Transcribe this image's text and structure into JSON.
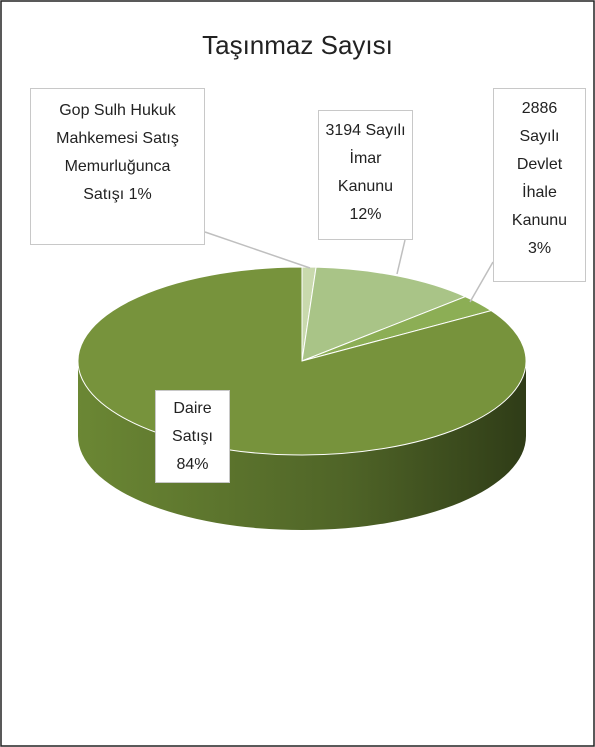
{
  "chart_data": {
    "type": "pie",
    "title": "Taşınmaz Sayısı",
    "categories": [
      "Gop Sulh Hukuk Mahkemesi Satış Memurluğunca Satışı",
      "3194 Sayılı İmar Kanunu",
      "2886 Sayılı Devlet İhale Kanunu",
      "Daire Satışı"
    ],
    "values": [
      1,
      12,
      3,
      84
    ],
    "value_labels": [
      "1%",
      "12%",
      "3%",
      "84%"
    ],
    "colors": [
      "#c9d9ad",
      "#a9c487",
      "#8cae55",
      "#77933c"
    ]
  }
}
